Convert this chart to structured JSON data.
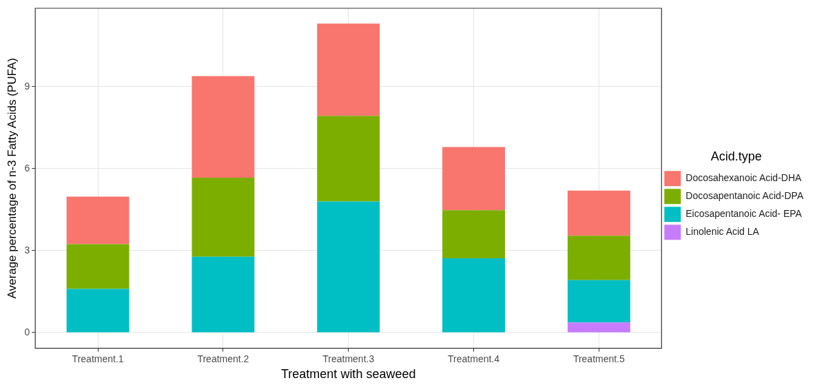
{
  "chart_data": {
    "type": "bar",
    "stacked": true,
    "xlabel": "Treatment with seaweed",
    "ylabel": "Average percentage of n-3 Fatty Acids (PUFA)",
    "legend_title": "Acid.type",
    "categories": [
      "Treatment.1",
      "Treatment.2",
      "Treatment.3",
      "Treatment.4",
      "Treatment.5"
    ],
    "series": [
      {
        "name": "Linolenic Acid LA",
        "color": "#c77cff",
        "values": [
          null,
          null,
          null,
          null,
          0.37
        ]
      },
      {
        "name": "Eicosapentanoic Acid- EPA",
        "color": "#00bfc4",
        "values": [
          1.6,
          2.78,
          4.8,
          2.72,
          1.55
        ]
      },
      {
        "name": "Docosapentanoic Acid-DPA",
        "color": "#7cae00",
        "values": [
          1.64,
          2.89,
          3.13,
          1.76,
          1.63
        ]
      },
      {
        "name": "Docosahexanoic Acid-DHA",
        "color": "#f8766d",
        "values": [
          1.74,
          3.72,
          3.38,
          2.31,
          1.65
        ]
      }
    ],
    "ylim": [
      -0.57,
      11.87
    ],
    "yticks": [
      0,
      3,
      6,
      9
    ],
    "grid": true,
    "legend": "right"
  }
}
